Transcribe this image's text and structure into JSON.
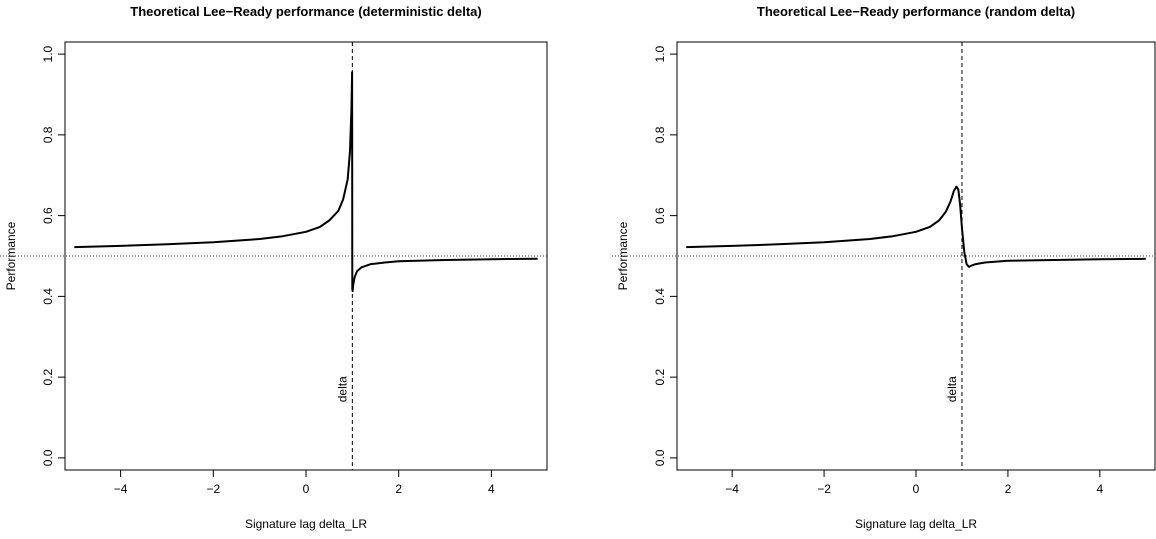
{
  "chart_data": [
    {
      "type": "line",
      "title": "Theoretical Lee−Ready performance (deterministic delta)",
      "xlabel": "Signature lag delta_LR",
      "ylabel": "Performance",
      "xlim": [
        -5.2,
        5.2
      ],
      "ylim": [
        -0.03,
        1.03
      ],
      "xticks": [
        -4,
        -2,
        0,
        2,
        4
      ],
      "xtick_labels": [
        "−4",
        "−2",
        "0",
        "2",
        "4"
      ],
      "yticks": [
        0.0,
        0.2,
        0.4,
        0.6,
        0.8,
        1.0
      ],
      "ytick_labels": [
        "0.0",
        "0.2",
        "0.4",
        "0.6",
        "0.8",
        "1.0"
      ],
      "grid": false,
      "reference_lines": {
        "horizontal_y": 0.5,
        "vertical_x": 1.0
      },
      "vline_label": "delta",
      "series": [
        {
          "x": [
            -5,
            -4,
            -3,
            -2,
            -1,
            -0.5,
            0,
            0.3,
            0.5,
            0.7,
            0.8,
            0.9,
            0.95,
            0.98,
            0.995,
            1.0,
            1.005,
            1.02,
            1.05,
            1.1,
            1.2,
            1.4,
            1.7,
            2,
            3,
            4,
            5
          ],
          "y": [
            0.522,
            0.525,
            0.529,
            0.534,
            0.542,
            0.549,
            0.56,
            0.572,
            0.588,
            0.612,
            0.64,
            0.69,
            0.76,
            0.86,
            0.955,
            0.42,
            0.413,
            0.43,
            0.448,
            0.462,
            0.472,
            0.48,
            0.484,
            0.487,
            0.49,
            0.492,
            0.493
          ]
        }
      ]
    },
    {
      "type": "line",
      "title": "Theoretical Lee−Ready performance (random delta)",
      "xlabel": "Signature lag delta_LR",
      "ylabel": "Performance",
      "xlim": [
        -5.2,
        5.2
      ],
      "ylim": [
        -0.03,
        1.03
      ],
      "xticks": [
        -4,
        -2,
        0,
        2,
        4
      ],
      "xtick_labels": [
        "−4",
        "−2",
        "0",
        "2",
        "4"
      ],
      "yticks": [
        0.0,
        0.2,
        0.4,
        0.6,
        0.8,
        1.0
      ],
      "ytick_labels": [
        "0.0",
        "0.2",
        "0.4",
        "0.6",
        "0.8",
        "1.0"
      ],
      "grid": false,
      "reference_lines": {
        "horizontal_y": 0.5,
        "vertical_x": 1.0
      },
      "vline_label": "delta",
      "series": [
        {
          "x": [
            -5,
            -4,
            -3,
            -2,
            -1,
            -0.5,
            0,
            0.3,
            0.5,
            0.65,
            0.75,
            0.82,
            0.88,
            0.92,
            0.96,
            1.0,
            1.05,
            1.1,
            1.15,
            1.2,
            1.3,
            1.5,
            2,
            3,
            4,
            5
          ],
          "y": [
            0.522,
            0.525,
            0.529,
            0.534,
            0.542,
            0.549,
            0.56,
            0.572,
            0.588,
            0.61,
            0.635,
            0.66,
            0.672,
            0.665,
            0.628,
            0.568,
            0.51,
            0.48,
            0.473,
            0.476,
            0.48,
            0.484,
            0.488,
            0.49,
            0.492,
            0.493
          ]
        }
      ]
    }
  ]
}
